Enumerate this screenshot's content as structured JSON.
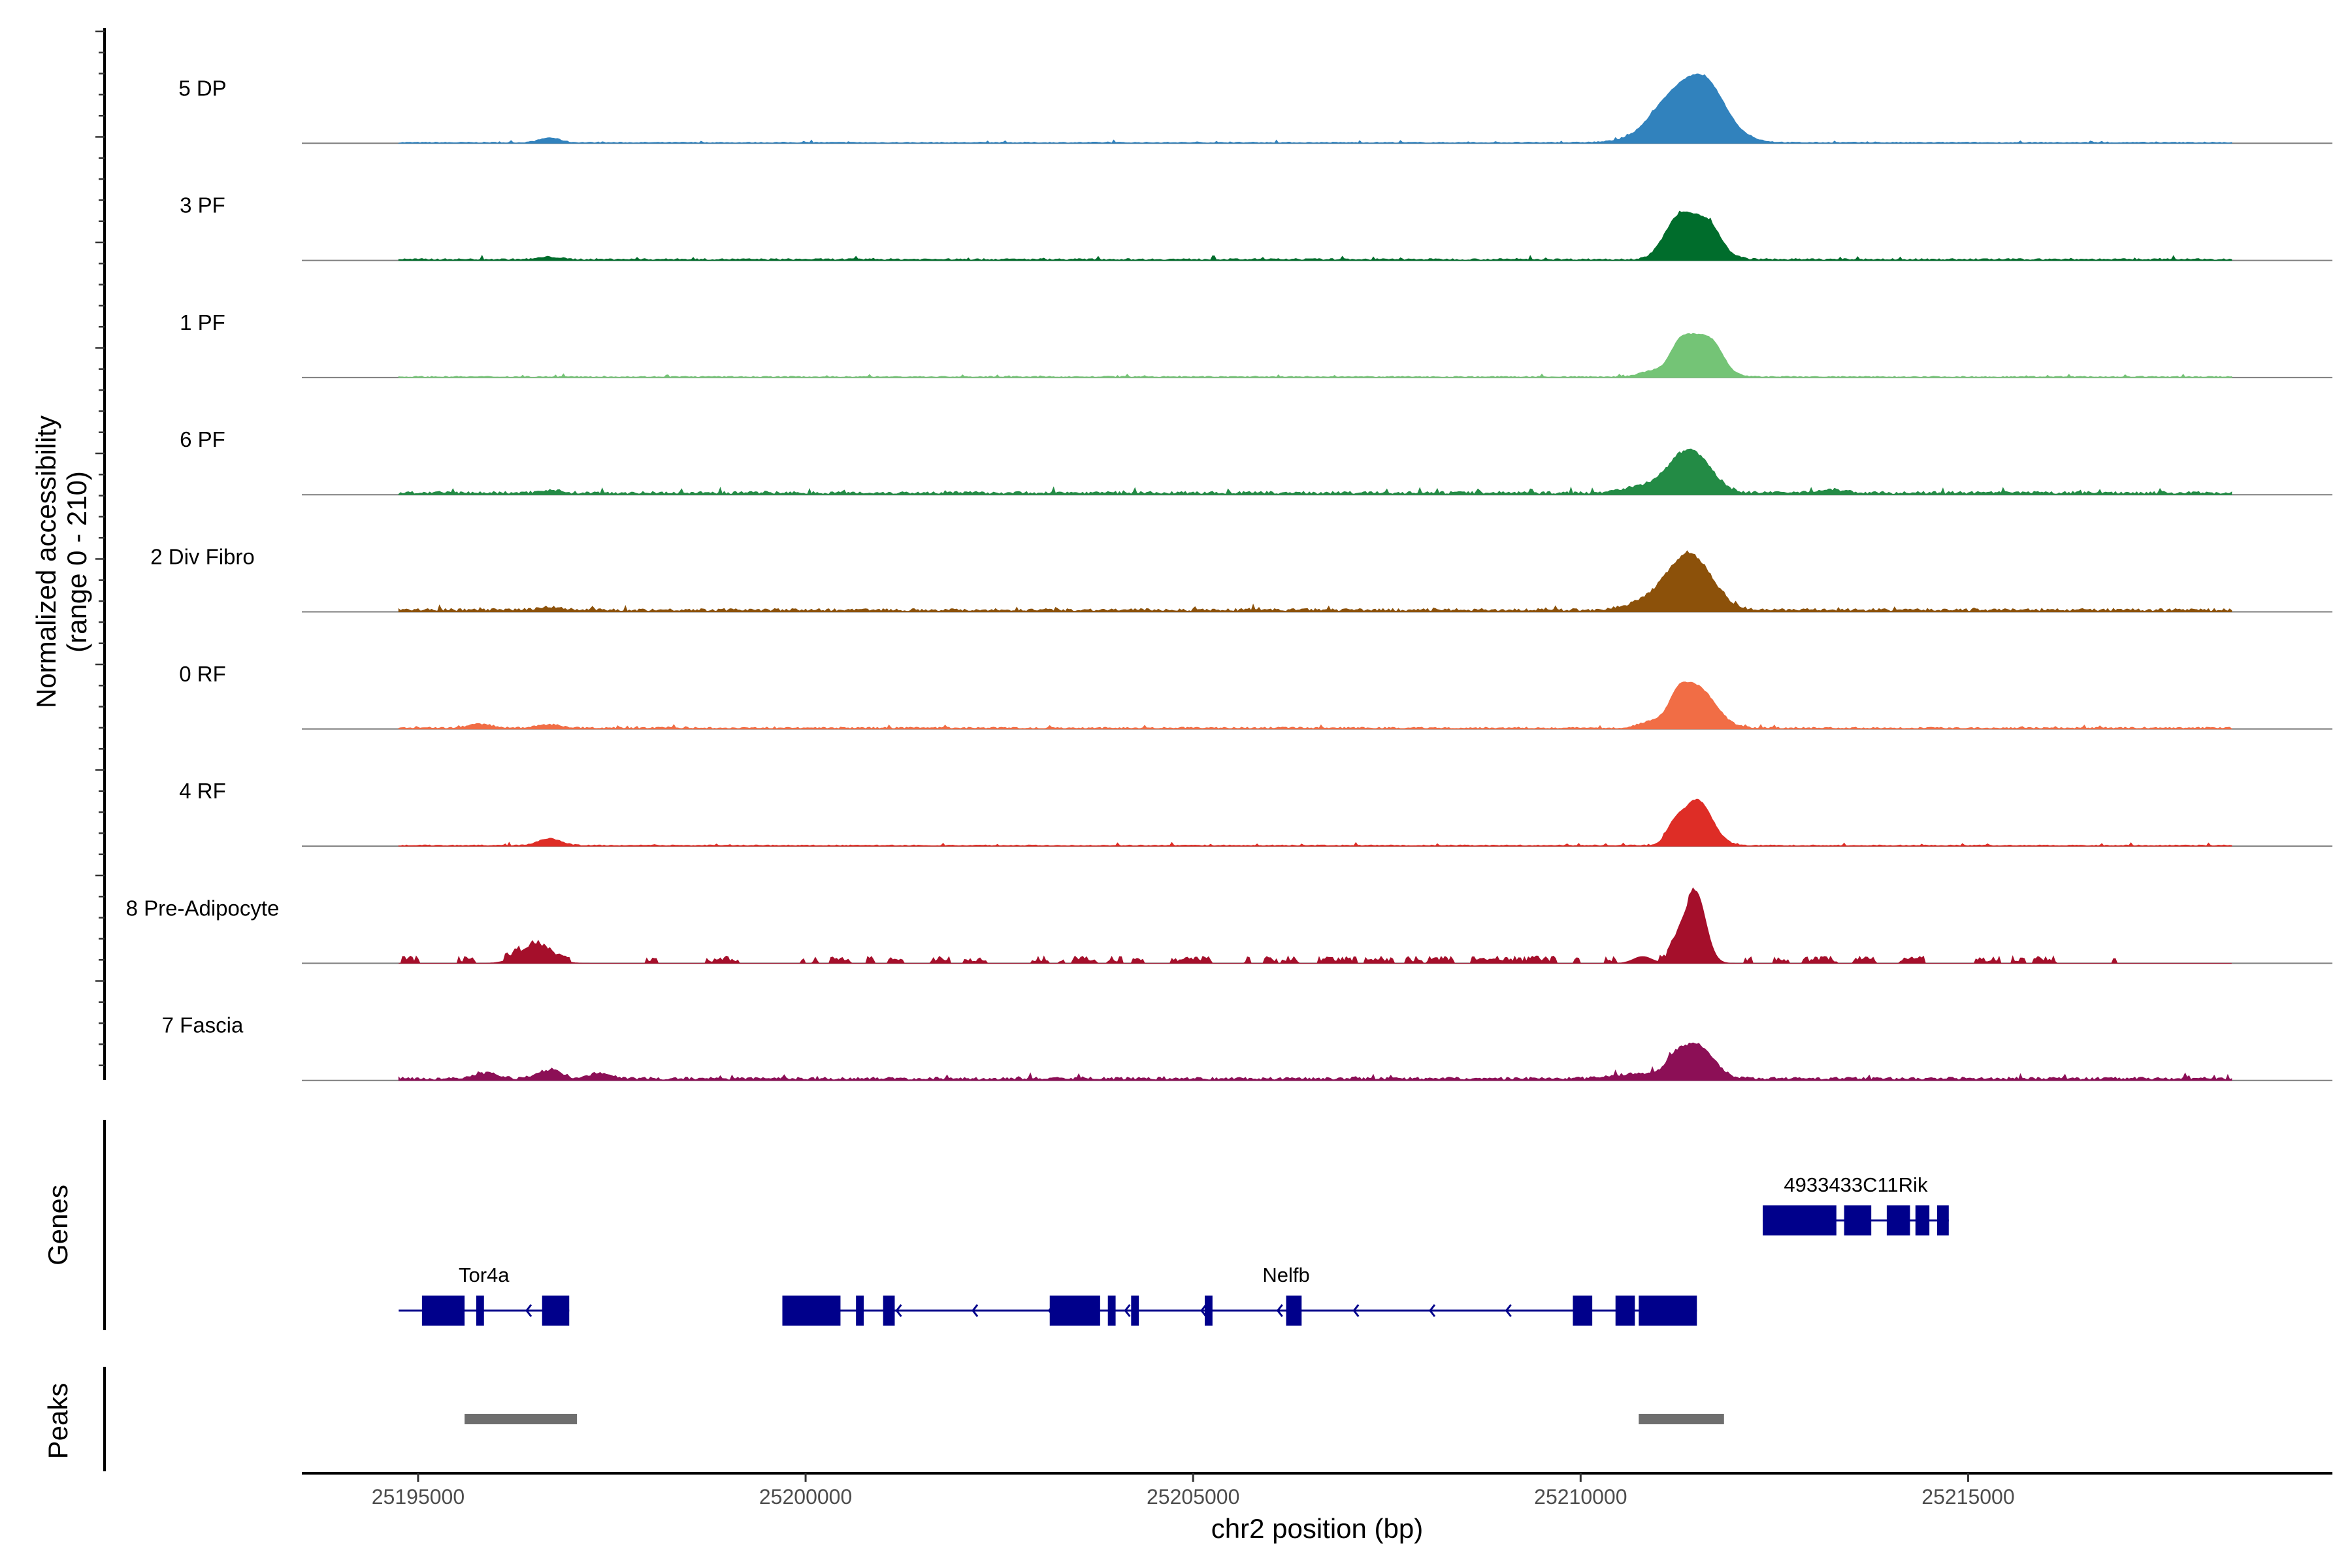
{
  "chart_data": {
    "type": "area",
    "description_type": "genome coverage track plot",
    "xlabel": "chr2 position (bp)",
    "ylabel_line1": "Normalized accessibility",
    "ylabel_line2": "(range 0 - 210)",
    "y_range": [
      0,
      210
    ],
    "xlim": [
      25193500,
      25219700
    ],
    "x_ticks": [
      25195000,
      25200000,
      25205000,
      25210000,
      25215000
    ],
    "x_tick_labels": [
      "25195000",
      "25200000",
      "25205000",
      "25210000",
      "25215000"
    ],
    "coverage_extent": [
      25194750,
      25218400
    ],
    "tracks": [
      {
        "name": "5 DP",
        "color": "#3182BD",
        "baseline": 4,
        "noise": 0.45,
        "peaks": [
          [
            25196700,
            130,
            10
          ],
          [
            25211000,
            200,
            16
          ],
          [
            25211300,
            420,
            34
          ],
          [
            25211480,
            330,
            100
          ],
          [
            25211700,
            180,
            20
          ]
        ]
      },
      {
        "name": "3 PF",
        "color": "#006D2C",
        "baseline": 4,
        "noise": 0.7,
        "peaks": [
          [
            25196700,
            130,
            5
          ],
          [
            25211200,
            160,
            42
          ],
          [
            25211480,
            240,
            82
          ],
          [
            25211700,
            120,
            20
          ]
        ]
      },
      {
        "name": "1 PF",
        "color": "#74C476",
        "baseline": 4,
        "noise": 0.5,
        "peaks": [
          [
            25210900,
            150,
            10
          ],
          [
            25211250,
            110,
            28
          ],
          [
            25211500,
            230,
            85
          ],
          [
            25211750,
            110,
            22
          ]
        ]
      },
      {
        "name": "6 PF",
        "color": "#238B45",
        "baseline": 5,
        "noise": 1.0,
        "peaks": [
          [
            25196700,
            130,
            6
          ],
          [
            25210800,
            250,
            14
          ],
          [
            25211250,
            200,
            40
          ],
          [
            25211500,
            230,
            64
          ],
          [
            25213200,
            180,
            7
          ]
        ]
      },
      {
        "name": "2 Div Fibro",
        "color": "#8C510A",
        "baseline": 5,
        "noise": 1.0,
        "peaks": [
          [
            25196700,
            130,
            7
          ],
          [
            25210900,
            260,
            20
          ],
          [
            25211250,
            220,
            54
          ],
          [
            25211520,
            240,
            80
          ]
        ]
      },
      {
        "name": "0 RF",
        "color": "#F16D45",
        "baseline": 4,
        "noise": 0.7,
        "peaks": [
          [
            25195800,
            150,
            8
          ],
          [
            25196700,
            150,
            7
          ],
          [
            25210900,
            150,
            12
          ],
          [
            25211250,
            120,
            38
          ],
          [
            25211500,
            230,
            85
          ]
        ]
      },
      {
        "name": "4 RF",
        "color": "#DE2D26",
        "baseline": 3,
        "noise": 0.6,
        "peaks": [
          [
            25196700,
            150,
            14
          ],
          [
            25211200,
            100,
            28
          ],
          [
            25211500,
            190,
            95
          ]
        ]
      },
      {
        "name": "8 Pre-Adipocyte",
        "color": "#A50F2B",
        "baseline": 0,
        "noise": 1.0,
        "sparse": true,
        "peaks": [
          [
            25196500,
            200,
            36
          ],
          [
            25211480,
            130,
            150
          ],
          [
            25211250,
            80,
            38
          ],
          [
            25210800,
            120,
            14
          ]
        ]
      },
      {
        "name": "7 Fascia",
        "color": "#8C0F56",
        "baseline": 5,
        "noise": 1.0,
        "peaks": [
          [
            25195900,
            150,
            11
          ],
          [
            25196700,
            150,
            18
          ],
          [
            25197350,
            120,
            12
          ],
          [
            25210700,
            250,
            10
          ],
          [
            25211200,
            130,
            28
          ],
          [
            25211500,
            210,
            70
          ]
        ]
      }
    ],
    "genes_panel_label": "Genes",
    "peaks_panel_label": "Peaks",
    "genes": [
      {
        "name": "4933433C11Rik",
        "row": 0,
        "start": 25212350,
        "end": 25214750,
        "strand": "-",
        "exons": [
          [
            25212350,
            25213300
          ],
          [
            25213400,
            25213750
          ],
          [
            25213950,
            25214250
          ],
          [
            25214320,
            25214500
          ],
          [
            25214600,
            25214750
          ]
        ]
      },
      {
        "name": "Tor4a",
        "row": 1,
        "start": 25194750,
        "end": 25196950,
        "strand": "-",
        "exons": [
          [
            25195050,
            25195600
          ],
          [
            25195750,
            25195850
          ],
          [
            25196600,
            25196950
          ]
        ]
      },
      {
        "name": "Nelfb",
        "row": 1,
        "start": 25199700,
        "end": 25211500,
        "strand": "-",
        "exons": [
          [
            25199700,
            25200450
          ],
          [
            25200650,
            25200750
          ],
          [
            25201000,
            25201150
          ],
          [
            25203150,
            25203800
          ],
          [
            25203900,
            25204000
          ],
          [
            25204200,
            25204300
          ],
          [
            25205150,
            25205250
          ],
          [
            25206200,
            25206400
          ],
          [
            25209900,
            25210150
          ],
          [
            25210450,
            25210700
          ],
          [
            25210750,
            25211500
          ]
        ]
      }
    ],
    "peaks": [
      [
        25195600,
        25197050
      ],
      [
        25210750,
        25211850
      ]
    ]
  }
}
